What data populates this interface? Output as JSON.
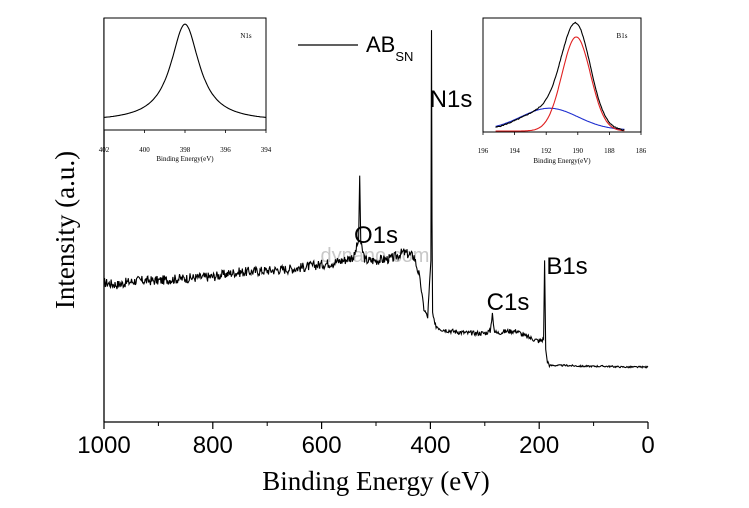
{
  "chart_data": [
    {
      "type": "line",
      "name": "main-survey",
      "xlabel": "Binding Energy (eV)",
      "ylabel": "Intensity (a.u.)",
      "xlim": [
        1000,
        0
      ],
      "ylim": [
        0,
        1
      ],
      "x_ticks": [
        1000,
        800,
        600,
        400,
        200,
        0
      ],
      "x_tick_labels": [
        "1000",
        "800",
        "600",
        "400",
        "200",
        "0"
      ],
      "legend": {
        "label_main": "AB",
        "label_sub": "SN",
        "placement": "top-center"
      },
      "series": [
        {
          "name": "AB_SN",
          "x": [
            1000,
            975,
            960,
            940,
            900,
            860,
            800,
            760,
            700,
            650,
            600,
            560,
            540,
            532,
            530,
            528,
            520,
            500,
            470,
            450,
            430,
            420,
            412,
            405,
            399,
            398,
            397,
            396,
            392,
            380,
            360,
            330,
            300,
            290,
            286,
            284,
            282,
            278,
            260,
            240,
            230,
            220,
            210,
            200,
            192,
            190,
            188,
            185,
            180,
            170,
            150,
            120,
            80,
            40,
            0
          ],
          "y": [
            0.345,
            0.34,
            0.345,
            0.35,
            0.35,
            0.355,
            0.36,
            0.37,
            0.375,
            0.38,
            0.39,
            0.4,
            0.41,
            0.45,
            0.61,
            0.44,
            0.4,
            0.4,
            0.405,
            0.42,
            0.41,
            0.36,
            0.28,
            0.26,
            0.4,
            0.97,
            0.5,
            0.27,
            0.24,
            0.23,
            0.225,
            0.22,
            0.22,
            0.225,
            0.27,
            0.24,
            0.225,
            0.22,
            0.225,
            0.225,
            0.215,
            0.21,
            0.205,
            0.2,
            0.205,
            0.4,
            0.18,
            0.15,
            0.14,
            0.14,
            0.14,
            0.138,
            0.138,
            0.136,
            0.136
          ]
        }
      ],
      "annotations": [
        {
          "text": "O1s",
          "x": 531
        },
        {
          "text": "N1s",
          "x": 398
        },
        {
          "text": "C1s",
          "x": 284
        },
        {
          "text": "B1s",
          "x": 190
        }
      ],
      "watermark": "dynano.com"
    },
    {
      "type": "line",
      "name": "inset-n1s",
      "title": "N1s",
      "xlabel": "Binding Energy(eV)",
      "xlim": [
        402,
        394
      ],
      "x_ticks": [
        402,
        400,
        398,
        396,
        394
      ],
      "x_tick_labels": [
        "402",
        "400",
        "398",
        "396",
        "394"
      ],
      "series": [
        {
          "name": "N1s",
          "peak_center": 398.0,
          "peak_width": 0.85,
          "baseline": 0.06,
          "amplitude": 0.92
        }
      ]
    },
    {
      "type": "line",
      "name": "inset-b1s",
      "title": "B1s",
      "xlabel": "Binding Energy(eV)",
      "xlim": [
        196,
        186
      ],
      "x_ticks": [
        196,
        194,
        192,
        190,
        188,
        186
      ],
      "x_tick_labels": [
        "196",
        "194",
        "192",
        "190",
        "188",
        "186"
      ],
      "series": [
        {
          "name": "measured",
          "color": "#000000"
        },
        {
          "name": "fit-main",
          "color": "#e02020",
          "peak_center": 190.1,
          "amplitude": 0.95,
          "sigma": 0.9
        },
        {
          "name": "fit-shoulder",
          "color": "#2030d0",
          "peak_center": 191.8,
          "amplitude": 0.22,
          "sigma": 1.8
        }
      ]
    }
  ]
}
